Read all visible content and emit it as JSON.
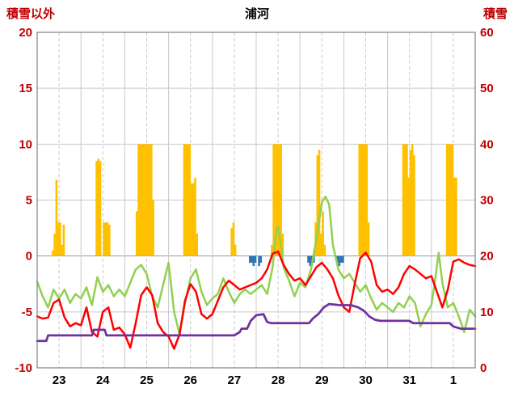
{
  "chart_data": {
    "type": "mixed",
    "title": "浦河",
    "left_axis": {
      "label": "積雪以外",
      "min": -10,
      "max": 20,
      "ticks": [
        20,
        15,
        10,
        5,
        0,
        -5,
        -10
      ]
    },
    "right_axis": {
      "label": "積雪",
      "min": 0,
      "max": 60,
      "ticks": [
        60,
        50,
        40,
        30,
        20,
        10,
        0
      ]
    },
    "x_axis": {
      "day_labels": [
        "23",
        "24",
        "25",
        "26",
        "27",
        "28",
        "29",
        "30",
        "31",
        "1"
      ],
      "hours_span": 240,
      "grid": "solid-at-midnight-dashed-at-noon"
    },
    "colors": {
      "orange": "#FFC000",
      "blue": "#2E75B6",
      "green": "#92D050",
      "red": "#FF0000",
      "purple": "#7030A0",
      "grid": "#C9C9C9",
      "frame": "#808080",
      "axis_text": "#C00000",
      "x_text": "#000000"
    },
    "series": [
      {
        "name": "orange-bars",
        "type": "bar",
        "axis": "left",
        "color": "#FFC000",
        "points": [
          [
            8,
            0.5
          ],
          [
            9,
            2
          ],
          [
            10,
            6.8
          ],
          [
            11,
            3
          ],
          [
            12,
            3
          ],
          [
            13,
            1
          ],
          [
            14,
            2.8
          ],
          [
            32,
            8.5
          ],
          [
            33,
            8.7
          ],
          [
            34,
            8.5
          ],
          [
            36,
            3
          ],
          [
            37,
            3
          ],
          [
            38,
            3
          ],
          [
            39,
            2.8
          ],
          [
            54,
            4
          ],
          [
            55,
            10
          ],
          [
            56,
            10
          ],
          [
            57,
            10
          ],
          [
            58,
            10
          ],
          [
            59,
            10
          ],
          [
            60,
            10
          ],
          [
            61,
            10
          ],
          [
            62,
            10
          ],
          [
            63,
            5
          ],
          [
            80,
            10
          ],
          [
            81,
            10
          ],
          [
            82,
            10
          ],
          [
            83,
            10
          ],
          [
            84,
            6.5
          ],
          [
            85,
            6.5
          ],
          [
            86,
            7
          ],
          [
            87,
            2
          ],
          [
            106,
            2.5
          ],
          [
            107,
            3
          ],
          [
            108,
            1
          ],
          [
            128,
            1
          ],
          [
            129,
            10
          ],
          [
            130,
            10
          ],
          [
            131,
            10
          ],
          [
            132,
            10
          ],
          [
            133,
            10
          ],
          [
            134,
            2
          ],
          [
            152,
            3
          ],
          [
            153,
            9
          ],
          [
            154,
            9.5
          ],
          [
            155,
            2
          ],
          [
            156,
            4
          ],
          [
            157,
            1
          ],
          [
            176,
            10
          ],
          [
            177,
            10
          ],
          [
            178,
            10
          ],
          [
            179,
            10
          ],
          [
            180,
            10
          ],
          [
            181,
            3
          ],
          [
            200,
            10
          ],
          [
            201,
            10
          ],
          [
            202,
            10
          ],
          [
            203,
            7
          ],
          [
            204,
            9.5
          ],
          [
            205,
            10
          ],
          [
            206,
            9
          ],
          [
            224,
            10
          ],
          [
            225,
            10
          ],
          [
            226,
            10
          ],
          [
            227,
            10
          ],
          [
            228,
            7
          ],
          [
            229,
            7
          ]
        ]
      },
      {
        "name": "blue-bars",
        "type": "bar",
        "axis": "left",
        "color": "#2E75B6",
        "points": [
          [
            116,
            -0.6
          ],
          [
            117,
            -0.6
          ],
          [
            118,
            -0.9
          ],
          [
            119,
            -0.6
          ],
          [
            121,
            -0.9
          ],
          [
            122,
            -0.6
          ],
          [
            148,
            -0.6
          ],
          [
            149,
            -0.9
          ],
          [
            150,
            -0.6
          ],
          [
            151,
            -0.6
          ],
          [
            164,
            -0.6
          ],
          [
            165,
            -0.9
          ],
          [
            166,
            -0.6
          ],
          [
            167,
            -0.6
          ]
        ]
      },
      {
        "name": "green-line",
        "type": "line",
        "axis": "left",
        "color": "#92D050",
        "width": 2.5,
        "points": [
          [
            0,
            -2.3
          ],
          [
            3,
            -3.6
          ],
          [
            6,
            -4.6
          ],
          [
            9,
            -3.0
          ],
          [
            12,
            -3.8
          ],
          [
            15,
            -3.0
          ],
          [
            18,
            -4.2
          ],
          [
            21,
            -3.4
          ],
          [
            24,
            -3.8
          ],
          [
            27,
            -2.8
          ],
          [
            30,
            -4.4
          ],
          [
            33,
            -1.9
          ],
          [
            36,
            -3.2
          ],
          [
            39,
            -2.6
          ],
          [
            42,
            -3.6
          ],
          [
            45,
            -3.0
          ],
          [
            48,
            -3.6
          ],
          [
            51,
            -2.4
          ],
          [
            54,
            -1.2
          ],
          [
            57,
            -0.8
          ],
          [
            60,
            -1.6
          ],
          [
            63,
            -3.6
          ],
          [
            66,
            -4.6
          ],
          [
            69,
            -2.6
          ],
          [
            72,
            -0.6
          ],
          [
            75,
            -5.0
          ],
          [
            78,
            -7.0
          ],
          [
            81,
            -4.2
          ],
          [
            84,
            -2.0
          ],
          [
            87,
            -1.2
          ],
          [
            90,
            -3.2
          ],
          [
            93,
            -4.4
          ],
          [
            96,
            -3.8
          ],
          [
            99,
            -3.4
          ],
          [
            102,
            -2.0
          ],
          [
            105,
            -3.2
          ],
          [
            108,
            -4.2
          ],
          [
            111,
            -3.4
          ],
          [
            114,
            -3.0
          ],
          [
            117,
            -3.4
          ],
          [
            120,
            -3.0
          ],
          [
            123,
            -2.6
          ],
          [
            126,
            -3.4
          ],
          [
            129,
            -1.0
          ],
          [
            131,
            2.4
          ],
          [
            132,
            2.6
          ],
          [
            134,
            0.5
          ],
          [
            135,
            -1.0
          ],
          [
            138,
            -2.2
          ],
          [
            141,
            -3.6
          ],
          [
            144,
            -2.4
          ],
          [
            147,
            -2.8
          ],
          [
            150,
            -1.2
          ],
          [
            153,
            1.5
          ],
          [
            156,
            4.8
          ],
          [
            158,
            5.3
          ],
          [
            160,
            4.6
          ],
          [
            162,
            1.0
          ],
          [
            165,
            -1.2
          ],
          [
            168,
            -2.0
          ],
          [
            171,
            -1.6
          ],
          [
            174,
            -2.4
          ],
          [
            177,
            -3.2
          ],
          [
            180,
            -2.6
          ],
          [
            183,
            -3.8
          ],
          [
            186,
            -4.8
          ],
          [
            189,
            -4.2
          ],
          [
            192,
            -4.6
          ],
          [
            195,
            -5.0
          ],
          [
            198,
            -4.2
          ],
          [
            201,
            -4.6
          ],
          [
            204,
            -3.6
          ],
          [
            207,
            -4.2
          ],
          [
            210,
            -6.3
          ],
          [
            213,
            -5.2
          ],
          [
            216,
            -4.4
          ],
          [
            218,
            -2.2
          ],
          [
            220,
            0.3
          ],
          [
            222,
            -2.4
          ],
          [
            225,
            -4.6
          ],
          [
            228,
            -4.2
          ],
          [
            231,
            -5.4
          ],
          [
            234,
            -6.8
          ],
          [
            237,
            -4.8
          ],
          [
            240,
            -5.4
          ]
        ]
      },
      {
        "name": "red-line",
        "type": "line",
        "axis": "left",
        "color": "#FF0000",
        "width": 2.5,
        "points": [
          [
            0,
            -5.4
          ],
          [
            3,
            -5.6
          ],
          [
            6,
            -5.5
          ],
          [
            9,
            -4.2
          ],
          [
            12,
            -3.9
          ],
          [
            15,
            -5.5
          ],
          [
            18,
            -6.3
          ],
          [
            21,
            -6.0
          ],
          [
            24,
            -6.2
          ],
          [
            27,
            -4.6
          ],
          [
            30,
            -6.8
          ],
          [
            33,
            -7.2
          ],
          [
            36,
            -5.0
          ],
          [
            39,
            -4.6
          ],
          [
            42,
            -6.6
          ],
          [
            45,
            -6.4
          ],
          [
            48,
            -7.0
          ],
          [
            51,
            -8.2
          ],
          [
            54,
            -6.0
          ],
          [
            57,
            -3.5
          ],
          [
            60,
            -2.8
          ],
          [
            63,
            -3.5
          ],
          [
            66,
            -6.0
          ],
          [
            69,
            -6.8
          ],
          [
            72,
            -7.2
          ],
          [
            75,
            -8.3
          ],
          [
            78,
            -7.0
          ],
          [
            81,
            -4.0
          ],
          [
            84,
            -2.5
          ],
          [
            87,
            -3.2
          ],
          [
            90,
            -5.2
          ],
          [
            93,
            -5.6
          ],
          [
            96,
            -5.2
          ],
          [
            99,
            -4.0
          ],
          [
            102,
            -2.8
          ],
          [
            105,
            -2.2
          ],
          [
            108,
            -2.6
          ],
          [
            111,
            -3.0
          ],
          [
            114,
            -2.8
          ],
          [
            117,
            -2.6
          ],
          [
            120,
            -2.4
          ],
          [
            123,
            -2.0
          ],
          [
            126,
            -1.2
          ],
          [
            129,
            0.2
          ],
          [
            132,
            0.4
          ],
          [
            135,
            -0.8
          ],
          [
            138,
            -1.6
          ],
          [
            141,
            -2.2
          ],
          [
            144,
            -2.0
          ],
          [
            147,
            -2.6
          ],
          [
            150,
            -1.8
          ],
          [
            153,
            -1.0
          ],
          [
            156,
            -0.6
          ],
          [
            159,
            -1.2
          ],
          [
            162,
            -2.0
          ],
          [
            165,
            -3.5
          ],
          [
            168,
            -4.6
          ],
          [
            171,
            -5.0
          ],
          [
            174,
            -2.5
          ],
          [
            177,
            -0.2
          ],
          [
            180,
            0.3
          ],
          [
            183,
            -0.5
          ],
          [
            186,
            -2.6
          ],
          [
            189,
            -3.2
          ],
          [
            192,
            -3.0
          ],
          [
            195,
            -3.4
          ],
          [
            198,
            -2.8
          ],
          [
            201,
            -1.6
          ],
          [
            204,
            -0.9
          ],
          [
            207,
            -1.2
          ],
          [
            210,
            -1.6
          ],
          [
            213,
            -2.0
          ],
          [
            216,
            -1.8
          ],
          [
            219,
            -3.2
          ],
          [
            222,
            -4.6
          ],
          [
            225,
            -3.0
          ],
          [
            228,
            -0.5
          ],
          [
            231,
            -0.3
          ],
          [
            234,
            -0.6
          ],
          [
            237,
            -0.8
          ],
          [
            240,
            -0.9
          ]
        ]
      },
      {
        "name": "purple-line",
        "type": "line",
        "axis": "right",
        "color": "#7030A0",
        "width": 2.75,
        "points": [
          [
            0,
            4.8
          ],
          [
            5,
            4.8
          ],
          [
            6,
            5.8
          ],
          [
            30,
            5.8
          ],
          [
            31,
            6.8
          ],
          [
            37,
            6.8
          ],
          [
            38,
            5.8
          ],
          [
            108,
            5.8
          ],
          [
            111,
            6.4
          ],
          [
            112,
            7
          ],
          [
            115,
            7
          ],
          [
            117,
            8.4
          ],
          [
            120,
            9.4
          ],
          [
            124,
            9.6
          ],
          [
            126,
            8.2
          ],
          [
            128,
            8
          ],
          [
            149,
            8
          ],
          [
            151,
            8.8
          ],
          [
            154,
            9.6
          ],
          [
            157,
            10.8
          ],
          [
            160,
            11.4
          ],
          [
            166,
            11.2
          ],
          [
            172,
            11.2
          ],
          [
            176,
            10.8
          ],
          [
            179,
            10.2
          ],
          [
            182,
            9.2
          ],
          [
            185,
            8.6
          ],
          [
            188,
            8.4
          ],
          [
            204,
            8.4
          ],
          [
            206,
            8
          ],
          [
            226,
            8
          ],
          [
            228,
            7.4
          ],
          [
            232,
            7
          ],
          [
            240,
            7
          ]
        ]
      }
    ]
  }
}
